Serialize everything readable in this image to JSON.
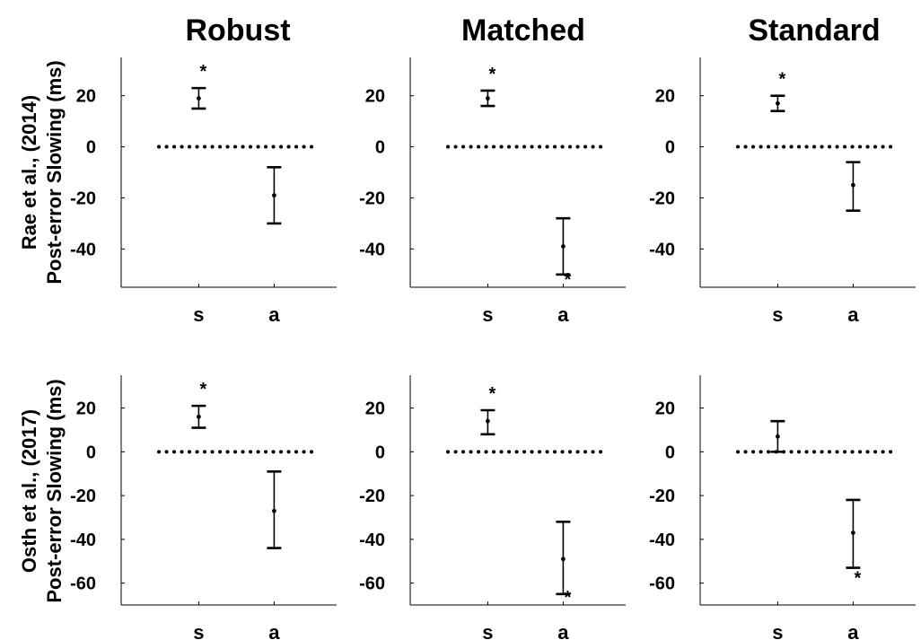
{
  "figure": {
    "columns": [
      "Robust",
      "Matched",
      "Standard"
    ],
    "rows": [
      {
        "dataset": "Rae et al., (2014)",
        "ylabel": "Post-error Slowing (ms)"
      },
      {
        "dataset": "Osth et al., (2017)",
        "ylabel": "Post-error Slowing (ms)"
      }
    ]
  },
  "chart_data": [
    {
      "type": "scatter",
      "panel": "Rae et al., (2014) - Robust",
      "title": "Robust",
      "xlabel": "",
      "ylabel": "Post-error Slowing (ms)",
      "categories": [
        "s",
        "a"
      ],
      "ylim": [
        -55,
        35
      ],
      "yticks": [
        20,
        0,
        -20,
        -40
      ],
      "reference_line": 0,
      "points": [
        {
          "category": "s",
          "mean": 19,
          "lower": 15,
          "upper": 23,
          "significant": true
        },
        {
          "category": "a",
          "mean": -19,
          "lower": -30,
          "upper": -8,
          "significant": false
        }
      ]
    },
    {
      "type": "scatter",
      "panel": "Rae et al., (2014) - Matched",
      "title": "Matched",
      "xlabel": "",
      "ylabel": "",
      "categories": [
        "s",
        "a"
      ],
      "ylim": [
        -55,
        35
      ],
      "yticks": [
        20,
        0,
        -20,
        -40
      ],
      "reference_line": 0,
      "points": [
        {
          "category": "s",
          "mean": 19,
          "lower": 16,
          "upper": 22,
          "significant": true
        },
        {
          "category": "a",
          "mean": -39,
          "lower": -50,
          "upper": -28,
          "significant": true
        }
      ]
    },
    {
      "type": "scatter",
      "panel": "Rae et al., (2014) - Standard",
      "title": "Standard",
      "xlabel": "",
      "ylabel": "",
      "categories": [
        "s",
        "a"
      ],
      "ylim": [
        -55,
        35
      ],
      "yticks": [
        20,
        0,
        -20,
        -40
      ],
      "reference_line": 0,
      "points": [
        {
          "category": "s",
          "mean": 17,
          "lower": 14,
          "upper": 20,
          "significant": true
        },
        {
          "category": "a",
          "mean": -15,
          "lower": -25,
          "upper": -6,
          "significant": false
        }
      ]
    },
    {
      "type": "scatter",
      "panel": "Osth et al., (2017) - Robust",
      "title": "",
      "xlabel": "",
      "ylabel": "Post-error Slowing (ms)",
      "categories": [
        "s",
        "a"
      ],
      "ylim": [
        -70,
        35
      ],
      "yticks": [
        20,
        0,
        -20,
        -40,
        -60
      ],
      "reference_line": 0,
      "points": [
        {
          "category": "s",
          "mean": 16,
          "lower": 11,
          "upper": 21,
          "significant": true
        },
        {
          "category": "a",
          "mean": -27,
          "lower": -44,
          "upper": -9,
          "significant": false
        }
      ]
    },
    {
      "type": "scatter",
      "panel": "Osth et al., (2017) - Matched",
      "title": "",
      "xlabel": "",
      "ylabel": "",
      "categories": [
        "s",
        "a"
      ],
      "ylim": [
        -70,
        35
      ],
      "yticks": [
        20,
        0,
        -20,
        -40,
        -60
      ],
      "reference_line": 0,
      "points": [
        {
          "category": "s",
          "mean": 14,
          "lower": 8,
          "upper": 19,
          "significant": true
        },
        {
          "category": "a",
          "mean": -49,
          "lower": -65,
          "upper": -32,
          "significant": true
        }
      ]
    },
    {
      "type": "scatter",
      "panel": "Osth et al., (2017) - Standard",
      "title": "",
      "xlabel": "",
      "ylabel": "",
      "categories": [
        "s",
        "a"
      ],
      "ylim": [
        -70,
        35
      ],
      "yticks": [
        20,
        0,
        -20,
        -40,
        -60
      ],
      "reference_line": 0,
      "points": [
        {
          "category": "s",
          "mean": 7,
          "lower": 0,
          "upper": 14,
          "significant": false
        },
        {
          "category": "a",
          "mean": -37,
          "lower": -53,
          "upper": -22,
          "significant": true
        }
      ]
    }
  ]
}
